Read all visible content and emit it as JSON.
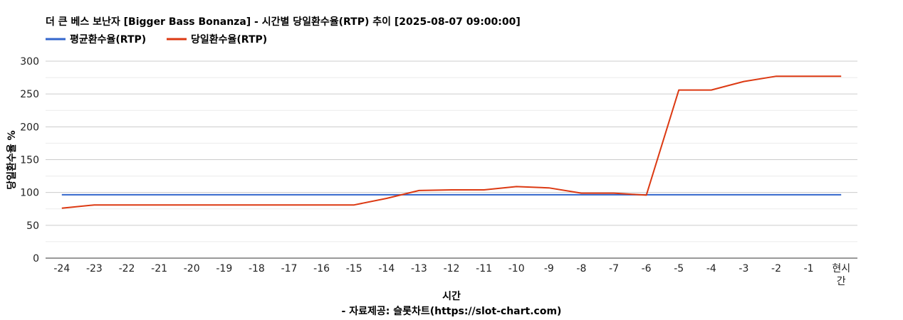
{
  "chart_data": {
    "type": "line",
    "title": "더 큰 베스 보난자 [Bigger Bass Bonanza] - 시간별 당일환수율(RTP) 추이 [2025-08-07 09:00:00]",
    "xlabel": "시간",
    "ylabel": "당일환수율 %",
    "source": "- 자료제공: 슬롯차트(https://slot-chart.com)",
    "categories": [
      "-24",
      "-23",
      "-22",
      "-21",
      "-20",
      "-19",
      "-18",
      "-17",
      "-16",
      "-15",
      "-14",
      "-13",
      "-12",
      "-11",
      "-10",
      "-9",
      "-8",
      "-7",
      "-6",
      "-5",
      "-4",
      "-3",
      "-2",
      "-1",
      "현시간"
    ],
    "ylim": [
      0,
      300
    ],
    "yticks": [
      0,
      50,
      100,
      150,
      200,
      250,
      300
    ],
    "grid": true,
    "legend_position": "top-left",
    "series": [
      {
        "name": "평균환수율(RTP)",
        "color": "#3366cc",
        "values": [
          96.5,
          96.5,
          96.5,
          96.5,
          96.5,
          96.5,
          96.5,
          96.5,
          96.5,
          96.5,
          96.5,
          96.5,
          96.5,
          96.5,
          96.5,
          96.5,
          96.5,
          96.5,
          96.5,
          96.5,
          96.5,
          96.5,
          96.5,
          96.5,
          96.5
        ]
      },
      {
        "name": "당일환수율(RTP)",
        "color": "#dc3912",
        "values": [
          76,
          81,
          81,
          81,
          81,
          81,
          81,
          81,
          81,
          81,
          91,
          103,
          104,
          104,
          109,
          107,
          99,
          99,
          96,
          256,
          256,
          269,
          277,
          277,
          277
        ]
      }
    ]
  }
}
